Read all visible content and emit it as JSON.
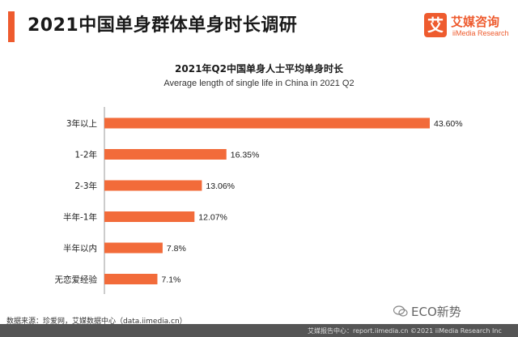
{
  "header": {
    "title": "2021中国单身群体单身时长调研",
    "logo_mark": "艾",
    "logo_cn": "艾媒咨询",
    "logo_en": "iiMedia Research"
  },
  "colors": {
    "accent": "#EE5B2E",
    "bar": "#F26B3A",
    "text": "#1A1A1A"
  },
  "chart_data": {
    "type": "bar",
    "orientation": "horizontal",
    "title": "2021年Q2中国单身人士平均单身时长",
    "subtitle": "Average length of single life in China in 2021 Q2",
    "categories": [
      "3年以上",
      "1-2年",
      "2-3年",
      "半年-1年",
      "半年以内",
      "无恋爱经验"
    ],
    "values": [
      43.6,
      16.35,
      13.06,
      12.07,
      7.8,
      7.1
    ],
    "value_labels": [
      "43.60%",
      "16.35%",
      "13.06%",
      "12.07%",
      "7.8%",
      "7.1%"
    ],
    "unit": "%",
    "xlim": [
      0,
      50
    ],
    "grid": false,
    "legend": "none"
  },
  "source_text": "数据来源：珍爱网，艾媒数据中心（data.iimedia.cn）",
  "footer_text": "艾媒报告中心：report.iimedia.cn ©2021 iiMedia Research Inc",
  "watermark": "ECO新势"
}
